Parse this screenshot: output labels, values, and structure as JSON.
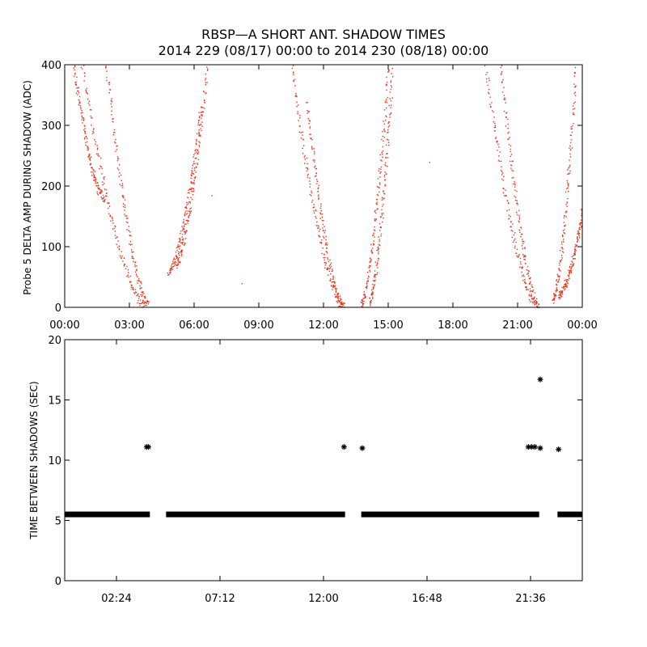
{
  "title": {
    "line1": "RBSP—A SHORT ANT. SHADOW TIMES",
    "line2": "2014 229 (08/17) 00:00 to 2014 230 (08/18) 00:00"
  },
  "colors": {
    "shadow_points": "#e8321a",
    "interval_points": "#000000",
    "axes": "#000000"
  },
  "chart_data": [
    {
      "type": "scatter",
      "name": "shadow-amplitude",
      "ylabel": "Probe 5 DELTA AMP DURING SHADOW (ADC)",
      "xunit": "hours",
      "xlim": [
        0,
        24
      ],
      "ylim": [
        0,
        400
      ],
      "xticks": [
        0,
        3,
        6,
        9,
        12,
        15,
        18,
        21,
        24
      ],
      "xtick_labels": [
        "00:00",
        "03:00",
        "06:00",
        "09:00",
        "12:00",
        "15:00",
        "18:00",
        "21:00",
        "00:00"
      ],
      "yticks": [
        0,
        100,
        200,
        300,
        400
      ],
      "ytick_labels": [
        "0",
        "100",
        "200",
        "300",
        "400"
      ],
      "series": [
        {
          "name": "pass-1-inbound-a",
          "x_start": 0.8,
          "x_end": 3.7,
          "y_start": 400,
          "y_end": 5
        },
        {
          "name": "pass-1-inbound-b",
          "x_start": 1.9,
          "x_end": 3.9,
          "y_start": 400,
          "y_end": 3
        },
        {
          "name": "pass-1-inbound-c",
          "x_start": 0.4,
          "x_end": 1.8,
          "y_start": 400,
          "y_end": 180
        },
        {
          "name": "pass-1-outbound-a",
          "x_start": 4.8,
          "x_end": 6.3,
          "y_start": 60,
          "y_end": 330
        },
        {
          "name": "pass-1-outbound-b",
          "x_start": 5.1,
          "x_end": 6.6,
          "y_start": 70,
          "y_end": 400
        },
        {
          "name": "pass-2-inbound-a",
          "x_start": 10.5,
          "x_end": 12.9,
          "y_start": 400,
          "y_end": 2
        },
        {
          "name": "pass-2-inbound-b",
          "x_start": 11.2,
          "x_end": 12.95,
          "y_start": 340,
          "y_end": 0
        },
        {
          "name": "pass-2-outbound-a",
          "x_start": 13.7,
          "x_end": 15.0,
          "y_start": 5,
          "y_end": 400
        },
        {
          "name": "pass-2-outbound-b",
          "x_start": 14.1,
          "x_end": 15.2,
          "y_start": 10,
          "y_end": 400
        },
        {
          "name": "pass-3-inbound-a",
          "x_start": 19.5,
          "x_end": 21.9,
          "y_start": 400,
          "y_end": 2
        },
        {
          "name": "pass-3-inbound-b",
          "x_start": 20.2,
          "x_end": 22.0,
          "y_start": 400,
          "y_end": 0
        },
        {
          "name": "pass-3-outbound-a",
          "x_start": 22.6,
          "x_end": 23.7,
          "y_start": 10,
          "y_end": 400
        },
        {
          "name": "pass-3-outbound-b",
          "x_start": 22.9,
          "x_end": 24.0,
          "y_start": 20,
          "y_end": 160
        }
      ],
      "isolated_points": [
        {
          "x": 6.8,
          "y": 185
        },
        {
          "x": 8.2,
          "y": 40
        },
        {
          "x": 16.9,
          "y": 240
        }
      ]
    },
    {
      "type": "scatter",
      "name": "time-between-shadows",
      "ylabel": "TIME BETWEEN SHADOWS (SEC)",
      "xunit": "hours",
      "xlim": [
        0,
        24
      ],
      "ylim": [
        0,
        20
      ],
      "xticks": [
        2.4,
        7.2,
        12.0,
        16.8,
        21.6
      ],
      "xtick_labels": [
        "02:24",
        "07:12",
        "12:00",
        "16:48",
        "21:36"
      ],
      "yticks": [
        0,
        5,
        10,
        15,
        20
      ],
      "ytick_labels": [
        "0",
        "5",
        "10",
        "15",
        "20"
      ],
      "baseline_runs": [
        {
          "x_start": 0.0,
          "x_end": 3.95,
          "y": 5.5
        },
        {
          "x_start": 4.7,
          "x_end": 13.0,
          "y": 5.5
        },
        {
          "x_start": 13.75,
          "x_end": 22.0,
          "y": 5.5
        },
        {
          "x_start": 22.85,
          "x_end": 24.0,
          "y": 5.5
        }
      ],
      "outliers": [
        {
          "x": 3.8,
          "y": 11.1
        },
        {
          "x": 3.88,
          "y": 11.1
        },
        {
          "x": 12.95,
          "y": 11.1
        },
        {
          "x": 13.8,
          "y": 11.0
        },
        {
          "x": 21.5,
          "y": 11.1
        },
        {
          "x": 21.65,
          "y": 11.1
        },
        {
          "x": 21.8,
          "y": 11.1
        },
        {
          "x": 22.05,
          "y": 16.7
        },
        {
          "x": 22.05,
          "y": 11.0
        },
        {
          "x": 22.9,
          "y": 10.9
        }
      ]
    }
  ]
}
